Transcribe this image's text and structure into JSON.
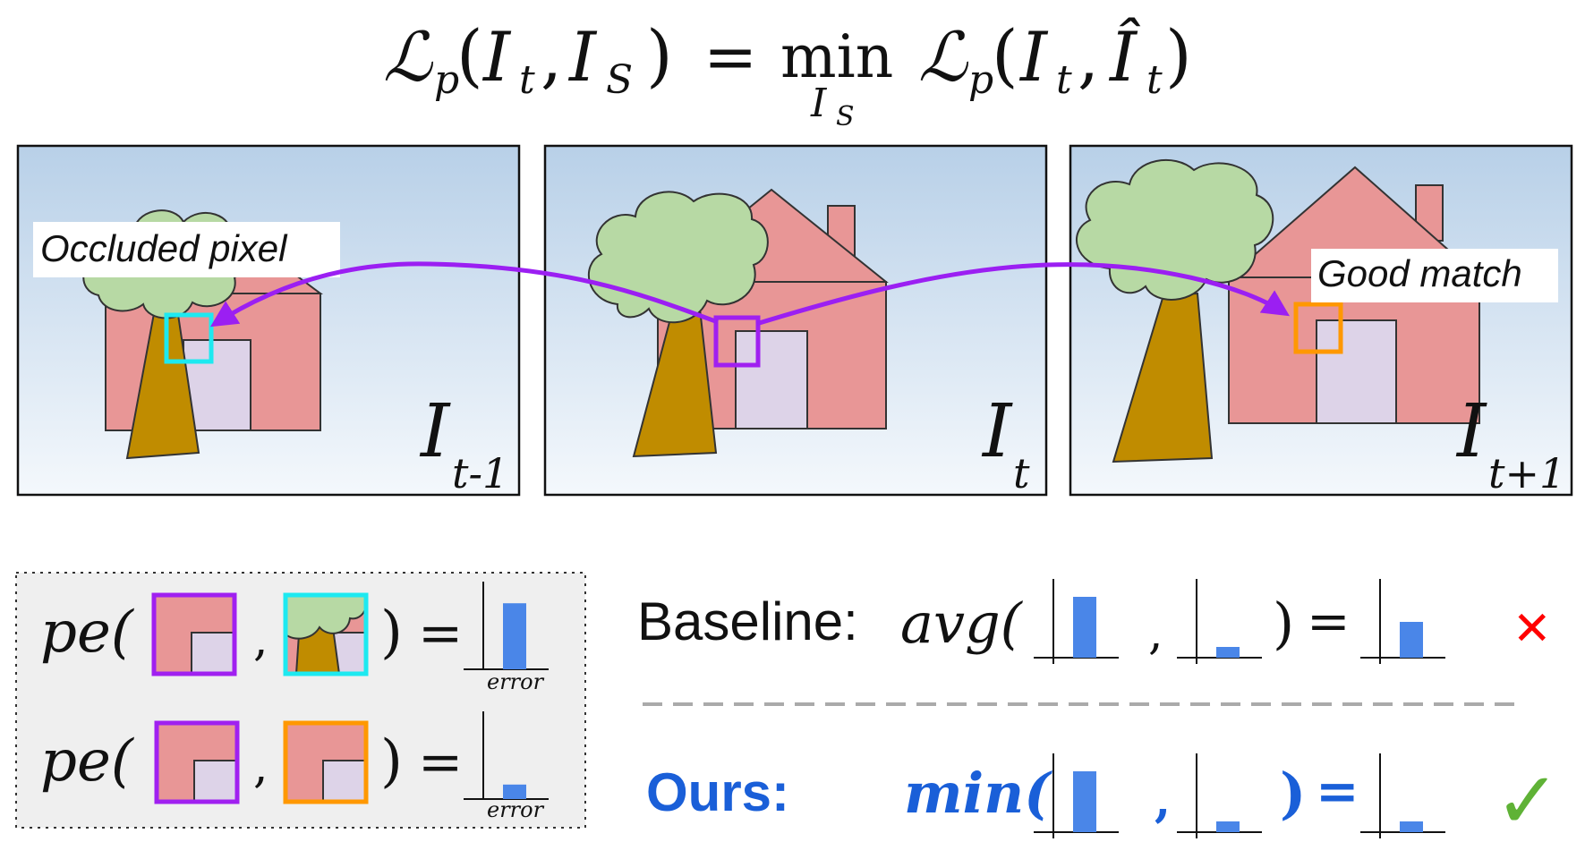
{
  "formula": {
    "lhs_symbol": "ℒ",
    "lhs_sub": "p",
    "lhs_args_open": "(",
    "lhs_I1": "I",
    "lhs_I1_sub": "t",
    "lhs_comma": ",",
    "lhs_I2": "I",
    "lhs_I2_sub": "S",
    "lhs_close": ")",
    "equals": "=",
    "min_word": "min",
    "min_under": "I",
    "min_under_sub": "S",
    "rhs_symbol": "ℒ",
    "rhs_sub": "p",
    "rhs_open": "(",
    "rhs_I1": "I",
    "rhs_I1_sub": "t",
    "rhs_comma": ",",
    "rhs_I2": "Î",
    "rhs_I2_sub": "t",
    "rhs_close": ")"
  },
  "frames": [
    {
      "label_main": "I",
      "label_sub": "t-1",
      "callout": "Occluded pixel",
      "box_color": "#1de9f0"
    },
    {
      "label_main": "I",
      "label_sub": "t",
      "callout": "",
      "box_color": "#a020f0"
    },
    {
      "label_main": "I",
      "label_sub": "t+1",
      "callout": "Good match",
      "box_color": "#ff9800"
    }
  ],
  "colors": {
    "arrow": "#9b1ff2",
    "sky_top": "#b8d0e8",
    "sky_bottom": "#f4f8fc",
    "house": "#e89696",
    "door": "#ddd3e8",
    "foliage": "#b7d9a4",
    "trunk": "#c08c00",
    "bar": "#4a86e8",
    "baseline_fail": "#ff0000",
    "ours_ok": "#5fb236",
    "ours_text": "#1a5fd8"
  },
  "left_panel": {
    "row1": {
      "pe": "pe(",
      "comma": ",",
      "close": ")",
      "equals": "=",
      "axis_label": "error",
      "error_level": 0.82
    },
    "row2": {
      "pe": "pe(",
      "comma": ",",
      "close": ")",
      "equals": "=",
      "axis_label": "error",
      "error_level": 0.18
    }
  },
  "right_panel": {
    "baseline": {
      "label": "Baseline:",
      "op": "avg(",
      "comma": ",",
      "close": ")",
      "equals": "=",
      "inputs": [
        0.85,
        0.15
      ],
      "result": 0.5,
      "mark": "✕"
    },
    "ours": {
      "label": "Ours:",
      "op": "min(",
      "comma": ",",
      "close": ")",
      "equals": "=",
      "inputs": [
        0.85,
        0.15
      ],
      "result": 0.15,
      "mark": "✓"
    }
  }
}
